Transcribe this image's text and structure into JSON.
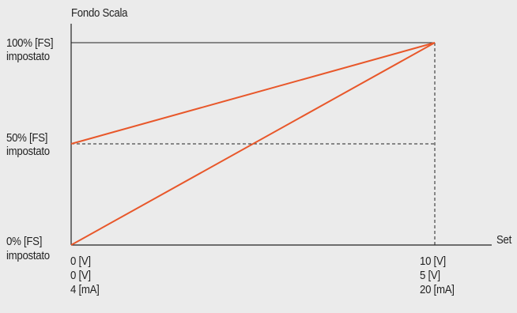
{
  "chart_data": {
    "type": "line",
    "title": "Fondo Scala",
    "xlabel": "Set",
    "ylabel": "Fondo Scala",
    "xlim": [
      0,
      100
    ],
    "ylim": [
      0,
      100
    ],
    "series": [
      {
        "points": [
          [
            0,
            50
          ],
          [
            100,
            100
          ]
        ]
      },
      {
        "points": [
          [
            0,
            0
          ],
          [
            100,
            100
          ]
        ]
      }
    ],
    "reference_lines": [
      {
        "axis": "y",
        "value": 100,
        "style": "solid"
      },
      {
        "axis": "y",
        "value": 50,
        "style": "dashed"
      },
      {
        "axis": "x",
        "value": 100,
        "style": "dashed"
      }
    ],
    "y_tick_labels": [
      {
        "value": 100,
        "line1": "100% [FS]",
        "line2": "impostato"
      },
      {
        "value": 50,
        "line1": "50%  [FS]",
        "line2": "impostato"
      },
      {
        "value": 0,
        "line1": "0%    [FS]",
        "line2": "impostato"
      }
    ],
    "x_tick_labels": [
      {
        "value": 0,
        "lines": [
          "0 [V]",
          "0 [V]",
          "4 [mA]"
        ]
      },
      {
        "value": 100,
        "lines": [
          "10 [V]",
          "5   [V]",
          "20 [mA]"
        ]
      }
    ],
    "colors": {
      "series": "#e8572a",
      "axis": "#222222",
      "background": "#ebebeb"
    },
    "grid": false,
    "legend": "none"
  }
}
